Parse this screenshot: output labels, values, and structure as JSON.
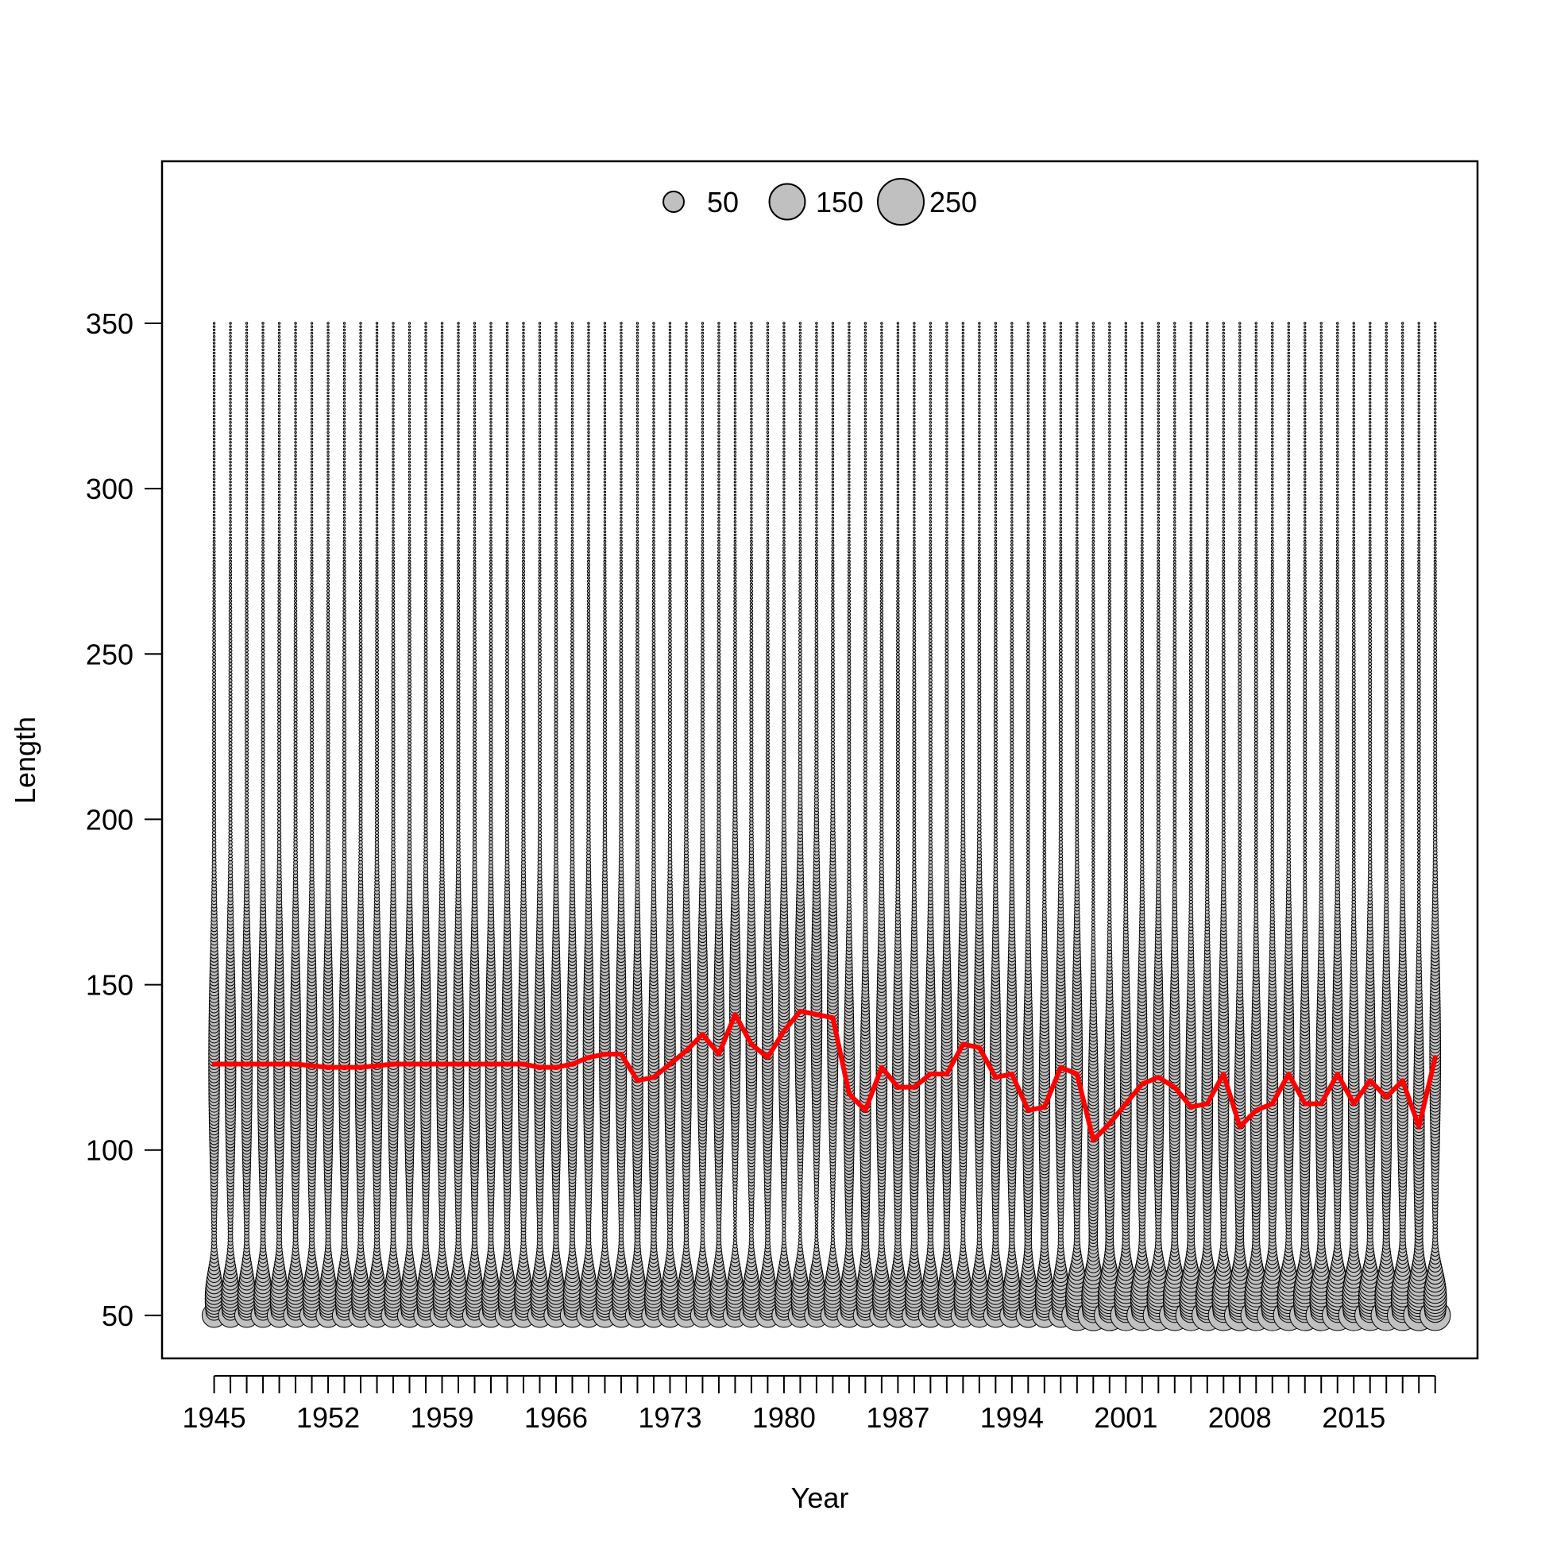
{
  "chart_data": {
    "type": "scatter",
    "title": "",
    "xlabel": "Year",
    "ylabel": "Length",
    "xlim": [
      1941.8,
      2022.6
    ],
    "ylim": [
      37,
      399
    ],
    "grid": false,
    "legend_position": "top-center",
    "y_ticks": [
      50,
      100,
      150,
      200,
      250,
      300,
      350
    ],
    "x_tick_labels": [
      "1945",
      "1952",
      "1959",
      "1966",
      "1973",
      "1980",
      "1987",
      "1994",
      "2001",
      "2008",
      "2015"
    ],
    "years": [
      1945,
      1946,
      1947,
      1948,
      1949,
      1950,
      1951,
      1952,
      1953,
      1954,
      1955,
      1956,
      1957,
      1958,
      1959,
      1960,
      1961,
      1962,
      1963,
      1964,
      1965,
      1966,
      1967,
      1968,
      1969,
      1970,
      1971,
      1972,
      1973,
      1974,
      1975,
      1976,
      1977,
      1978,
      1979,
      1980,
      1981,
      1982,
      1983,
      1984,
      1985,
      1986,
      1987,
      1988,
      1989,
      1990,
      1991,
      1992,
      1993,
      1994,
      1995,
      1996,
      1997,
      1998,
      1999,
      2000,
      2001,
      2002,
      2003,
      2004,
      2005,
      2006,
      2007,
      2008,
      2009,
      2010,
      2011,
      2012,
      2013,
      2014,
      2015,
      2016,
      2017,
      2018,
      2019,
      2020
    ],
    "length_bins": {
      "min": 50,
      "max": 350,
      "step": 1
    },
    "bubble_size_legend": {
      "values": [
        50,
        150,
        250
      ],
      "labels": [
        "50",
        "150",
        "250"
      ]
    },
    "series": [
      {
        "name": "",
        "type": "line",
        "color": "#ff0000",
        "x": [
          1945,
          1946,
          1947,
          1948,
          1949,
          1950,
          1951,
          1952,
          1953,
          1954,
          1955,
          1956,
          1957,
          1958,
          1959,
          1960,
          1961,
          1962,
          1963,
          1964,
          1965,
          1966,
          1967,
          1968,
          1969,
          1970,
          1971,
          1972,
          1973,
          1974,
          1975,
          1976,
          1977,
          1978,
          1979,
          1980,
          1981,
          1982,
          1983,
          1984,
          1985,
          1986,
          1987,
          1988,
          1989,
          1990,
          1991,
          1992,
          1993,
          1994,
          1995,
          1996,
          1997,
          1998,
          1999,
          2000,
          2001,
          2002,
          2003,
          2004,
          2005,
          2006,
          2007,
          2008,
          2009,
          2010,
          2011,
          2012,
          2013,
          2014,
          2015,
          2016,
          2017,
          2018,
          2019,
          2020
        ],
        "y": [
          126,
          126,
          126,
          126,
          126,
          126,
          125.5,
          125,
          125,
          125,
          125.5,
          126,
          126,
          126,
          126,
          126,
          126,
          126,
          126,
          126,
          125,
          125,
          126,
          128,
          129,
          129,
          121,
          122,
          126,
          130,
          135,
          129,
          141,
          132,
          128,
          136,
          142,
          141,
          140,
          117,
          112,
          125,
          119,
          119,
          123,
          123,
          132,
          131,
          122,
          123,
          112,
          113,
          125,
          123,
          103,
          108,
          114,
          120,
          122,
          119,
          113,
          114,
          123,
          107,
          112,
          114,
          123,
          114,
          114,
          123,
          114,
          121,
          116,
          121,
          107,
          128
        ]
      }
    ],
    "bubble_style": {
      "fill": "#c0c0c0",
      "stroke": "#000000"
    }
  }
}
